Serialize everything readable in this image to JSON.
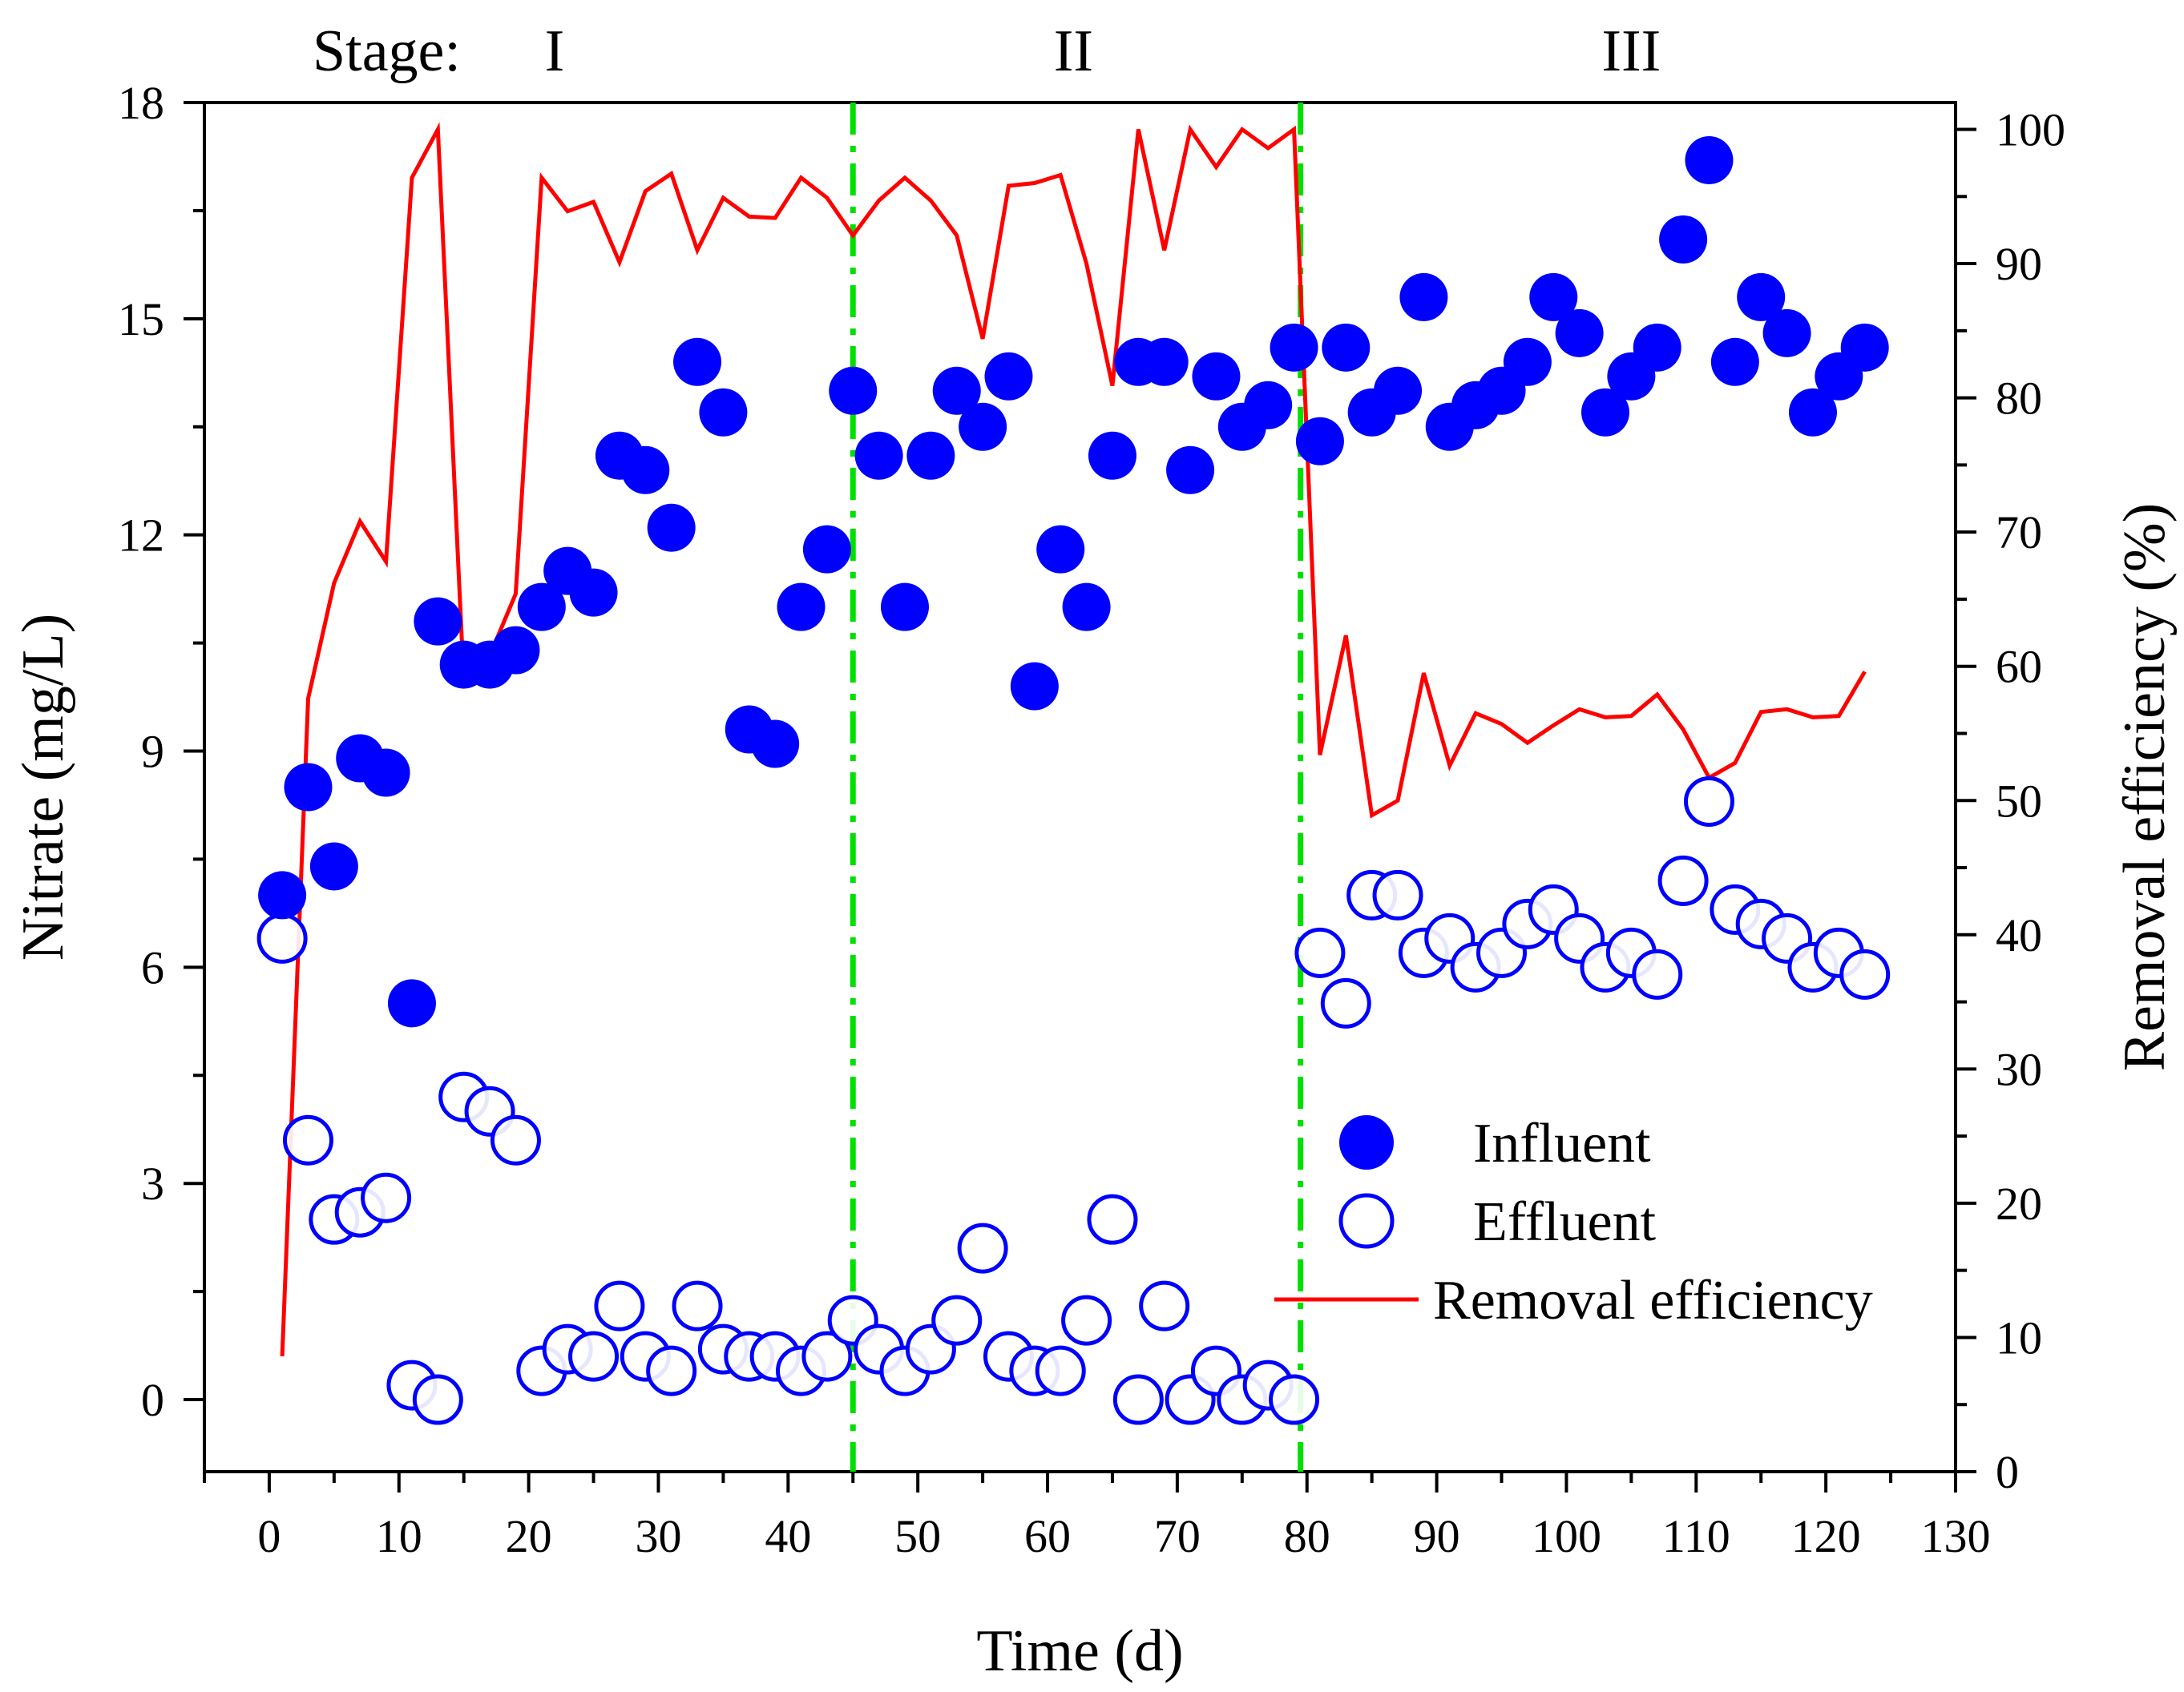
{
  "chart_data": {
    "type": "scatter+line",
    "stage_label": "Stage:",
    "stages": [
      {
        "label": "I",
        "center": 22
      },
      {
        "label": "II",
        "center": 62
      },
      {
        "label": "III",
        "center": 105
      }
    ],
    "stage_dividers": [
      45,
      79.5
    ],
    "xlabel": "Time (d)",
    "ylabel": "Nitrate (mg/L)",
    "y2label": "Removal efficiency (%)",
    "xlim": [
      -5,
      130
    ],
    "ylim": [
      -1,
      18
    ],
    "y2lim": [
      0,
      102
    ],
    "xticks": [
      0,
      10,
      20,
      30,
      40,
      50,
      60,
      70,
      80,
      90,
      100,
      110,
      120,
      130
    ],
    "yticks": [
      0,
      3,
      6,
      9,
      12,
      15,
      18
    ],
    "y2ticks": [
      0,
      10,
      20,
      30,
      40,
      50,
      60,
      70,
      80,
      90,
      100
    ],
    "series": [
      {
        "name": "Influent",
        "axis": "left",
        "style": "filled-circle",
        "color": "#0000ff",
        "x": [
          1,
          3,
          5,
          7,
          9,
          11,
          13,
          15,
          17,
          19,
          21,
          23,
          25,
          27,
          29,
          31,
          33,
          35,
          37,
          39,
          41,
          43,
          45,
          47,
          49,
          51,
          53,
          55,
          57,
          59,
          61,
          63,
          65,
          67,
          69,
          71,
          73,
          75,
          77,
          79,
          81,
          83,
          85,
          87,
          89,
          91,
          93,
          95,
          97,
          99,
          101,
          103,
          105,
          107,
          109,
          111,
          113,
          115,
          117,
          119,
          121,
          123
        ],
        "y": [
          7.0,
          8.5,
          7.4,
          8.9,
          8.7,
          5.5,
          10.8,
          10.2,
          10.2,
          10.4,
          11.0,
          11.5,
          11.2,
          13.1,
          12.9,
          12.1,
          14.4,
          13.7,
          9.3,
          9.1,
          11.0,
          11.8,
          14.0,
          13.1,
          11.0,
          13.1,
          14.0,
          13.5,
          14.2,
          9.9,
          11.8,
          11.0,
          13.1,
          14.4,
          14.4,
          12.9,
          14.2,
          13.5,
          13.8,
          14.6,
          13.3,
          14.6,
          13.7,
          14.0,
          15.3,
          13.5,
          13.8,
          14.0,
          14.4,
          15.3,
          14.8,
          13.7,
          14.2,
          14.6,
          16.1,
          17.2,
          14.4,
          15.3,
          14.8,
          13.7,
          14.2,
          14.6
        ]
      },
      {
        "name": "Effluent",
        "axis": "left",
        "style": "open-circle",
        "color": "#0000ff",
        "x": [
          1,
          3,
          5,
          7,
          9,
          11,
          13,
          15,
          17,
          19,
          21,
          23,
          25,
          27,
          29,
          31,
          33,
          35,
          37,
          39,
          41,
          43,
          45,
          47,
          49,
          51,
          53,
          55,
          57,
          59,
          61,
          63,
          65,
          67,
          69,
          71,
          73,
          75,
          77,
          79,
          81,
          83,
          85,
          87,
          89,
          91,
          93,
          95,
          97,
          99,
          101,
          103,
          105,
          107,
          109,
          111,
          113,
          115,
          117,
          119,
          121,
          123
        ],
        "y": [
          6.4,
          3.6,
          2.5,
          2.6,
          2.8,
          0.2,
          0.0,
          4.2,
          4.0,
          3.6,
          0.4,
          0.7,
          0.6,
          1.3,
          0.6,
          0.4,
          1.3,
          0.7,
          0.6,
          0.6,
          0.4,
          0.6,
          1.1,
          0.7,
          0.4,
          0.7,
          1.1,
          2.1,
          0.6,
          0.4,
          0.4,
          1.1,
          2.5,
          0.0,
          1.3,
          0.0,
          0.4,
          0.0,
          0.2,
          0.0,
          6.2,
          5.5,
          7.0,
          7.0,
          6.2,
          6.4,
          6.0,
          6.2,
          6.6,
          6.8,
          6.4,
          6.0,
          6.2,
          5.9,
          7.2,
          8.3,
          6.8,
          6.6,
          6.4,
          6.0,
          6.2,
          5.9
        ]
      },
      {
        "name": "Removal efficiency",
        "axis": "right",
        "style": "line",
        "color": "#ff0000",
        "x": [
          1,
          3,
          5,
          7,
          9,
          11,
          13,
          15,
          17,
          19,
          21,
          23,
          25,
          27,
          29,
          31,
          33,
          35,
          37,
          39,
          41,
          43,
          45,
          47,
          49,
          51,
          53,
          55,
          57,
          59,
          61,
          63,
          65,
          67,
          69,
          71,
          73,
          75,
          77,
          79,
          81,
          83,
          85,
          87,
          89,
          91,
          93,
          95,
          97,
          99,
          101,
          103,
          105,
          107,
          109,
          111,
          113,
          115,
          117,
          119,
          121,
          123
        ],
        "y": [
          8.6,
          57.6,
          66.2,
          70.8,
          67.8,
          96.4,
          100.0,
          58.8,
          60.8,
          65.4,
          96.4,
          93.9,
          94.6,
          90.1,
          95.4,
          96.7,
          91.0,
          94.9,
          93.5,
          93.4,
          96.4,
          94.9,
          92.1,
          94.7,
          96.4,
          94.7,
          92.1,
          84.4,
          95.8,
          96.0,
          96.6,
          90.0,
          80.9,
          100.0,
          91.0,
          100.0,
          97.2,
          100.0,
          98.6,
          100.0,
          53.4,
          62.3,
          48.9,
          50.0,
          59.5,
          52.6,
          56.5,
          55.7,
          54.3,
          55.6,
          56.8,
          56.2,
          56.3,
          57.9,
          55.3,
          51.7,
          52.8,
          56.6,
          56.8,
          56.2,
          56.3,
          59.6
        ]
      }
    ],
    "legend_position": "lower-right",
    "colors": {
      "influent": "#0000ff",
      "effluent": "#0000ff",
      "removal": "#ff0000",
      "divider": "#00e000",
      "axis": "#000000"
    }
  }
}
